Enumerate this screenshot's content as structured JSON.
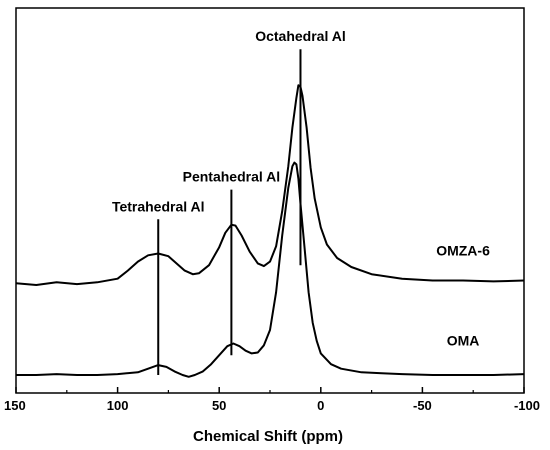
{
  "chart_data": {
    "type": "line",
    "title": "",
    "xlabel": "Chemical Shift (ppm)",
    "ylabel": "",
    "xlim": [
      150,
      -100
    ],
    "x_reversed": true,
    "x_ticks": [
      150,
      100,
      50,
      0,
      -50,
      -100
    ],
    "y_ticks_shown": false,
    "grid": false,
    "series": [
      {
        "name": "OMZA-6",
        "baseline": 1.0,
        "points": [
          [
            150,
            0.02
          ],
          [
            140,
            0.0
          ],
          [
            130,
            0.03
          ],
          [
            120,
            0.01
          ],
          [
            110,
            0.03
          ],
          [
            100,
            0.07
          ],
          [
            95,
            0.16
          ],
          [
            90,
            0.26
          ],
          [
            85,
            0.33
          ],
          [
            80,
            0.35
          ],
          [
            75,
            0.32
          ],
          [
            70,
            0.22
          ],
          [
            67,
            0.16
          ],
          [
            63,
            0.12
          ],
          [
            60,
            0.13
          ],
          [
            55,
            0.22
          ],
          [
            50,
            0.42
          ],
          [
            47,
            0.58
          ],
          [
            44,
            0.67
          ],
          [
            42,
            0.66
          ],
          [
            39,
            0.55
          ],
          [
            35,
            0.37
          ],
          [
            31,
            0.24
          ],
          [
            28,
            0.21
          ],
          [
            25,
            0.26
          ],
          [
            22,
            0.43
          ],
          [
            19,
            0.82
          ],
          [
            16,
            1.32
          ],
          [
            14,
            1.75
          ],
          [
            12,
            2.08
          ],
          [
            11,
            2.22
          ],
          [
            10,
            2.2
          ],
          [
            9,
            2.1
          ],
          [
            7,
            1.75
          ],
          [
            5,
            1.3
          ],
          [
            3,
            0.96
          ],
          [
            0,
            0.64
          ],
          [
            -3,
            0.45
          ],
          [
            -8,
            0.3
          ],
          [
            -15,
            0.2
          ],
          [
            -25,
            0.12
          ],
          [
            -40,
            0.07
          ],
          [
            -55,
            0.05
          ],
          [
            -70,
            0.05
          ],
          [
            -85,
            0.04
          ],
          [
            -100,
            0.05
          ]
        ]
      },
      {
        "name": "OMA",
        "baseline": 0.0,
        "points": [
          [
            150,
            0.0
          ],
          [
            140,
            0.0
          ],
          [
            130,
            0.01
          ],
          [
            120,
            0.0
          ],
          [
            110,
            0.0
          ],
          [
            100,
            0.01
          ],
          [
            90,
            0.03
          ],
          [
            85,
            0.07
          ],
          [
            80,
            0.11
          ],
          [
            76,
            0.09
          ],
          [
            72,
            0.04
          ],
          [
            68,
            0.0
          ],
          [
            65,
            -0.02
          ],
          [
            62,
            0.0
          ],
          [
            58,
            0.04
          ],
          [
            54,
            0.12
          ],
          [
            50,
            0.22
          ],
          [
            46,
            0.32
          ],
          [
            43,
            0.35
          ],
          [
            40,
            0.32
          ],
          [
            37,
            0.27
          ],
          [
            34,
            0.24
          ],
          [
            31,
            0.25
          ],
          [
            28,
            0.33
          ],
          [
            25,
            0.5
          ],
          [
            22,
            0.92
          ],
          [
            19,
            1.55
          ],
          [
            16,
            2.08
          ],
          [
            14,
            2.32
          ],
          [
            13,
            2.36
          ],
          [
            12,
            2.34
          ],
          [
            11,
            2.18
          ],
          [
            10,
            1.9
          ],
          [
            8,
            1.42
          ],
          [
            6,
            0.92
          ],
          [
            4,
            0.58
          ],
          [
            2,
            0.38
          ],
          [
            0,
            0.24
          ],
          [
            -5,
            0.12
          ],
          [
            -10,
            0.07
          ],
          [
            -20,
            0.03
          ],
          [
            -30,
            0.02
          ],
          [
            -40,
            0.01
          ],
          [
            -55,
            0.0
          ],
          [
            -70,
            0.0
          ],
          [
            -85,
            0.0
          ],
          [
            -100,
            0.01
          ]
        ]
      }
    ],
    "markers": [
      {
        "label": "Tetrahedral Al",
        "x": 80,
        "from": 0.0,
        "to": 1.73
      },
      {
        "label": "Pentahedral Al",
        "x": 44,
        "from": 0.22,
        "to": 2.06
      },
      {
        "label": "Octahedral Al",
        "x": 10,
        "from": 1.22,
        "to": 3.62
      }
    ]
  }
}
